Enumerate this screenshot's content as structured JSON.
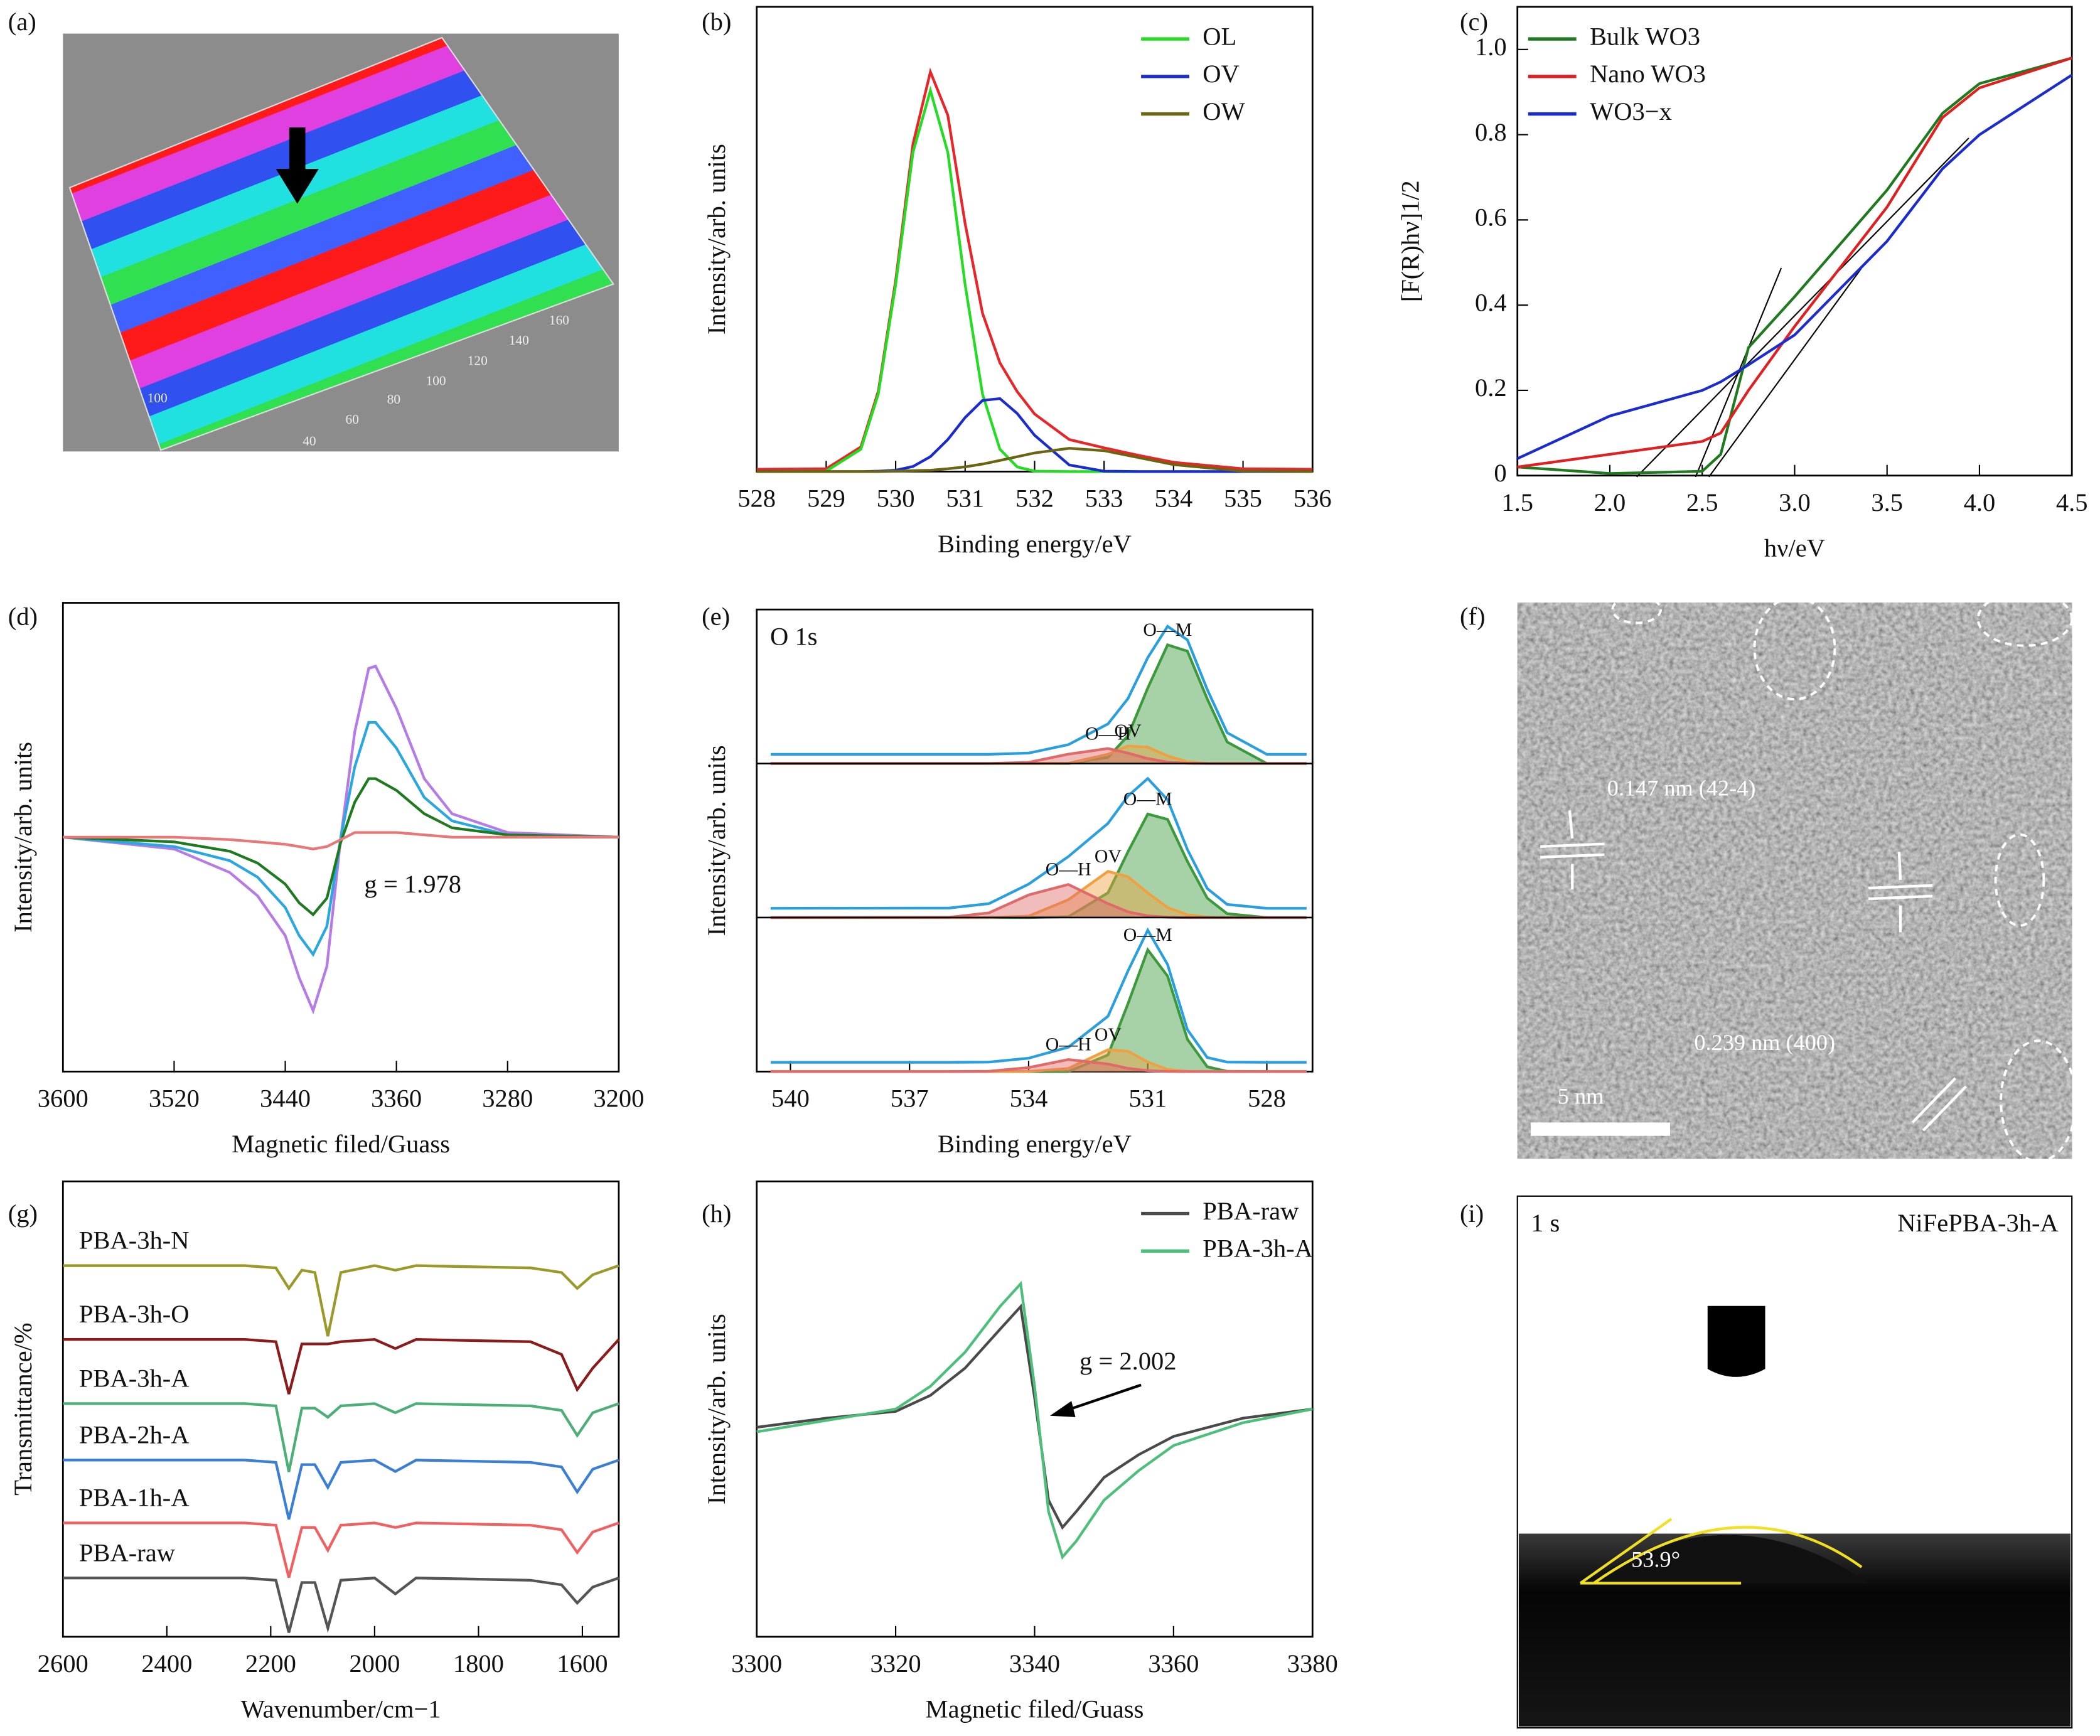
{
  "chart_data": [
    {
      "type": "image",
      "panel": "(a)",
      "annotations": [
        "40",
        "60",
        "80",
        "100",
        "120",
        "140",
        "160",
        "100"
      ]
    },
    {
      "type": "line",
      "panel": "(b)",
      "xlabel": "Binding energy/eV",
      "ylabel": "Intensity/arb. units",
      "x": [
        528,
        529,
        529.5,
        529.75,
        530,
        530.25,
        530.5,
        530.75,
        531,
        531.25,
        531.5,
        531.75,
        532,
        532.5,
        533,
        533.5,
        534,
        535,
        536
      ],
      "xlim": [
        528,
        536
      ],
      "xticks": [
        528,
        529,
        530,
        531,
        532,
        533,
        534,
        535,
        536
      ],
      "ylim": [
        0,
        1
      ],
      "legend": "upper right",
      "series": [
        {
          "color": "#e8262a",
          "values": [
            0.005,
            0.006,
            0.053,
            0.173,
            0.412,
            0.705,
            0.86,
            0.767,
            0.534,
            0.341,
            0.234,
            0.172,
            0.124,
            0.069,
            0.051,
            0.035,
            0.02,
            0.006,
            0.005
          ]
        },
        {
          "name": "OL",
          "color": "#22dd22",
          "values": [
            0,
            0.001,
            0.048,
            0.167,
            0.403,
            0.687,
            0.82,
            0.687,
            0.403,
            0.167,
            0.048,
            0.01,
            0.001,
            0,
            0,
            0,
            0,
            0,
            0
          ]
        },
        {
          "name": "OV",
          "color": "#1a2bd0",
          "values": [
            0,
            0,
            0,
            0.001,
            0.003,
            0.011,
            0.032,
            0.069,
            0.116,
            0.153,
            0.157,
            0.125,
            0.078,
            0.014,
            0.001,
            0,
            0,
            0,
            0
          ]
        },
        {
          "name": "OW",
          "color": "#6b6410",
          "values": [
            0,
            0,
            0,
            0,
            0.001,
            0.002,
            0.003,
            0.006,
            0.01,
            0.016,
            0.024,
            0.032,
            0.04,
            0.05,
            0.045,
            0.03,
            0.015,
            0.001,
            0
          ]
        }
      ]
    },
    {
      "type": "line",
      "panel": "(c)",
      "xlabel": "hν/eV",
      "ylabel": "[F(R)hν]1/2",
      "x": [
        1.5,
        2,
        2.5,
        2.6,
        2.75,
        3,
        3.5,
        3.8,
        4,
        4.5
      ],
      "xlim": [
        1.5,
        4.5
      ],
      "xticks": [
        1.5,
        {
          "value": 2,
          "label": "2.0"
        },
        2.5,
        {
          "value": 3,
          "label": "3.0"
        },
        3.5,
        {
          "value": 4,
          "label": "4.0"
        },
        4.5
      ],
      "ylim": [
        0,
        1.1
      ],
      "yticks": [
        0,
        0.2,
        0.4,
        0.6,
        0.8,
        {
          "value": 1,
          "label": "1.0"
        }
      ],
      "legend": "upper left",
      "series": [
        {
          "name": "Bulk WO3",
          "color": "#1f7a1f",
          "values": [
            0.02,
            0.005,
            0.01,
            0.05,
            0.3,
            0.42,
            0.67,
            0.85,
            0.92,
            0.98
          ]
        },
        {
          "name": "Nano WO3",
          "color": "#e02020",
          "values": [
            0.02,
            0.05,
            0.08,
            0.1,
            0.2,
            0.35,
            0.63,
            0.84,
            0.91,
            0.98
          ]
        },
        {
          "name": "WO3−x",
          "color": "#1a2bd0",
          "values": [
            0.04,
            0.14,
            0.2,
            0.22,
            0.26,
            0.33,
            0.55,
            0.72,
            0.8,
            0.94
          ]
        }
      ]
    },
    {
      "type": "line",
      "panel": "(d)",
      "xlabel": "Magnetic filed/Guass",
      "ylabel": "Intensity/arb. units",
      "x": [
        3600,
        3520,
        3480,
        3460,
        3440,
        3430,
        3420,
        3410,
        3400,
        3390,
        3380,
        3375,
        3360,
        3340,
        3320,
        3280,
        3200
      ],
      "xlim": [
        3600,
        3200
      ],
      "xticks": [
        3600,
        3520,
        3440,
        3360,
        3280,
        3200
      ],
      "ylim": [
        -1,
        1
      ],
      "annotations": [
        "g = 1.978"
      ],
      "series": [
        {
          "color": "#b57be8",
          "values": [
            0,
            -0.05,
            -0.15,
            -0.25,
            -0.42,
            -0.6,
            -0.74,
            -0.55,
            0,
            0.45,
            0.72,
            0.73,
            0.55,
            0.25,
            0.1,
            0.02,
            0
          ]
        },
        {
          "color": "#2aa6e0",
          "values": [
            0,
            -0.04,
            -0.1,
            -0.17,
            -0.3,
            -0.42,
            -0.5,
            -0.38,
            0,
            0.3,
            0.49,
            0.49,
            0.38,
            0.17,
            0.07,
            0.01,
            0
          ]
        },
        {
          "color": "#1f7a1f",
          "values": [
            0,
            -0.02,
            -0.06,
            -0.11,
            -0.2,
            -0.28,
            -0.33,
            -0.26,
            -0.02,
            0.15,
            0.25,
            0.25,
            0.2,
            0.1,
            0.04,
            0.01,
            0
          ]
        },
        {
          "color": "#e87878",
          "values": [
            0,
            0,
            -0.01,
            -0.02,
            -0.03,
            -0.04,
            -0.05,
            -0.04,
            -0.01,
            0.02,
            0.02,
            0.02,
            0.02,
            0.01,
            0,
            0,
            0
          ]
        }
      ]
    },
    {
      "type": "line",
      "panel": "(e)",
      "title": "O 1s",
      "xlabel": "Binding energy/eV",
      "ylabel": "Intensity/arb. units",
      "x": [
        540.5,
        536,
        535,
        534,
        533,
        532,
        531.5,
        531,
        530.5,
        530,
        529.5,
        529,
        528,
        527
      ],
      "xlim": [
        540.85,
        526.85
      ],
      "xticks": [
        540,
        537,
        534,
        531,
        528
      ],
      "ylim": [
        0,
        1
      ],
      "legend": "peak",
      "area": true,
      "panels": [
        {
          "series": [
            {
              "color": "#2a9fe0",
              "values": [
                0.06,
                0.06,
                0.06,
                0.068,
                0.123,
                0.257,
                0.422,
                0.688,
                0.89,
                0.803,
                0.481,
                0.2,
                0.06,
                0.06
              ]
            },
            {
              "name": "O—M",
              "color": "#3c9a3c",
              "values": [
                0,
                0,
                0,
                0,
                0,
                0.04,
                0.18,
                0.49,
                0.77,
                0.73,
                0.42,
                0.14,
                0,
                0
              ]
            },
            {
              "name": "OV",
              "color": "#f0a040",
              "values": [
                0,
                0,
                0,
                0,
                0.002,
                0.06,
                0.114,
                0.106,
                0.05,
                0.011,
                0.001,
                0,
                0,
                0
              ]
            },
            {
              "name": "O—H",
              "color": "#e06a6a",
              "values": [
                0,
                0,
                0,
                0.008,
                0.061,
                0.097,
                0.068,
                0.032,
                0.01,
                0.002,
                0,
                0,
                0,
                0
              ]
            }
          ]
        },
        {
          "series": [
            {
              "color": "#2a9fe0",
              "values": [
                0.06,
                0.062,
                0.09,
                0.217,
                0.396,
                0.611,
                0.789,
                0.903,
                0.764,
                0.442,
                0.189,
                0.085,
                0.06,
                0.06
              ]
            },
            {
              "name": "O—M",
              "color": "#3c9a3c",
              "values": [
                0,
                0,
                0,
                0,
                0.005,
                0.161,
                0.427,
                0.672,
                0.637,
                0.364,
                0.126,
                0.025,
                0,
                0
              ]
            },
            {
              "name": "OV",
              "color": "#f0a040",
              "values": [
                0,
                0,
                0,
                0.01,
                0.116,
                0.3,
                0.265,
                0.16,
                0.065,
                0.018,
                0.003,
                0,
                0,
                0
              ]
            },
            {
              "name": "O—H",
              "color": "#e06a6a",
              "values": [
                0,
                0.002,
                0.03,
                0.147,
                0.215,
                0.09,
                0.037,
                0.011,
                0.002,
                0,
                0,
                0,
                0,
                0
              ]
            }
          ]
        },
        {
          "series": [
            {
              "color": "#2a9fe0",
              "values": [
                0.06,
                0.06,
                0.062,
                0.087,
                0.158,
                0.359,
                0.653,
                0.918,
                0.695,
                0.272,
                0.091,
                0.062,
                0.06,
                0.06
              ]
            },
            {
              "name": "O—M",
              "color": "#3c9a3c",
              "values": [
                0,
                0,
                0,
                0,
                0,
                0.108,
                0.44,
                0.79,
                0.62,
                0.21,
                0.031,
                0.002,
                0,
                0
              ]
            },
            {
              "name": "OV",
              "color": "#f0a040",
              "values": [
                0,
                0,
                0,
                0.001,
                0.02,
                0.142,
                0.132,
                0.062,
                0.014,
                0.002,
                0,
                0,
                0,
                0
              ]
            },
            {
              "name": "O—H",
              "color": "#e06a6a",
              "values": [
                0,
                0,
                0.002,
                0.026,
                0.078,
                0.049,
                0.021,
                0.006,
                0.001,
                0,
                0,
                0,
                0,
                0
              ]
            }
          ]
        }
      ]
    },
    {
      "type": "image",
      "panel": "(f)",
      "annotations": [
        "0.147 nm (42-4)",
        "0.239 nm (400)",
        "5 nm"
      ]
    },
    {
      "type": "line",
      "panel": "(g)",
      "xlabel": "Wavenumber/cm−1",
      "ylabel": "Transmittance/%",
      "x": [
        2600,
        2250,
        2190,
        2165,
        2140,
        2115,
        2090,
        2065,
        2000,
        1960,
        1920,
        1700,
        1640,
        1610,
        1580,
        1530
      ],
      "xlim": [
        2600,
        1530
      ],
      "xticks": [
        2600,
        2400,
        2200,
        2000,
        1800,
        1600
      ],
      "ylim": [
        0,
        10
      ],
      "legend": "inline",
      "series": [
        {
          "name": "PBA-3h-N",
          "color": "#9a9a2a",
          "values": [
            8.15,
            8.15,
            8.1,
            7.65,
            8.05,
            8.0,
            6.6,
            8.0,
            8.15,
            8.05,
            8.15,
            8.1,
            8.0,
            7.65,
            7.95,
            8.15
          ]
        },
        {
          "name": "PBA-3h-O",
          "color": "#8b1a1a",
          "values": [
            6.53,
            6.53,
            6.48,
            5.33,
            6.43,
            6.43,
            6.43,
            6.48,
            6.53,
            6.33,
            6.53,
            6.48,
            6.2,
            5.43,
            5.9,
            6.53
          ]
        },
        {
          "name": "PBA-3h-A",
          "color": "#4caf78",
          "values": [
            5.12,
            5.12,
            5.07,
            3.62,
            5.02,
            5.02,
            4.82,
            5.07,
            5.12,
            4.92,
            5.12,
            5.07,
            4.97,
            4.42,
            4.92,
            5.12
          ]
        },
        {
          "name": "PBA-2h-A",
          "color": "#3a7fd5",
          "values": [
            3.88,
            3.88,
            3.83,
            2.58,
            3.78,
            3.78,
            3.28,
            3.83,
            3.88,
            3.63,
            3.88,
            3.83,
            3.73,
            3.18,
            3.68,
            3.88
          ]
        },
        {
          "name": "PBA-1h-A",
          "color": "#f06060",
          "values": [
            2.5,
            2.5,
            2.45,
            1.3,
            2.4,
            2.4,
            1.9,
            2.45,
            2.5,
            2.4,
            2.5,
            2.45,
            2.35,
            1.85,
            2.3,
            2.5
          ]
        },
        {
          "name": "PBA-raw",
          "color": "#555555",
          "values": [
            1.29,
            1.29,
            1.24,
            0.09,
            1.19,
            1.19,
            0.19,
            1.24,
            1.29,
            0.94,
            1.29,
            1.24,
            1.14,
            0.74,
            1.09,
            1.29
          ]
        }
      ]
    },
    {
      "type": "line",
      "panel": "(h)",
      "xlabel": "Magnetic filed/Guass",
      "ylabel": "Intensity/arb. units",
      "x": [
        3300,
        3310,
        3320,
        3325,
        3330,
        3335,
        3338,
        3340,
        3342,
        3344,
        3346,
        3350,
        3355,
        3360,
        3370,
        3380
      ],
      "xlim": [
        3300,
        3380
      ],
      "xticks": [
        3300,
        3320,
        3340,
        3360,
        3380
      ],
      "ylim": [
        -1,
        1
      ],
      "legend": "upper right",
      "annotations": [
        "g = 2.002"
      ],
      "series": [
        {
          "name": "PBA-raw",
          "color": "#4a4a4a",
          "values": [
            -0.08,
            -0.04,
            -0.01,
            0.06,
            0.18,
            0.35,
            0.45,
            0.05,
            -0.4,
            -0.52,
            -0.45,
            -0.3,
            -0.2,
            -0.12,
            -0.04,
            0
          ]
        },
        {
          "name": "PBA-3h-A",
          "color": "#4cc07a",
          "values": [
            -0.1,
            -0.05,
            0,
            0.1,
            0.25,
            0.45,
            0.55,
            0.1,
            -0.45,
            -0.65,
            -0.58,
            -0.4,
            -0.27,
            -0.16,
            -0.06,
            0
          ]
        }
      ]
    },
    {
      "type": "image",
      "panel": "(i)",
      "annotations": [
        "1 s",
        "NiFePBA-3h-A",
        "53.9°"
      ]
    }
  ]
}
